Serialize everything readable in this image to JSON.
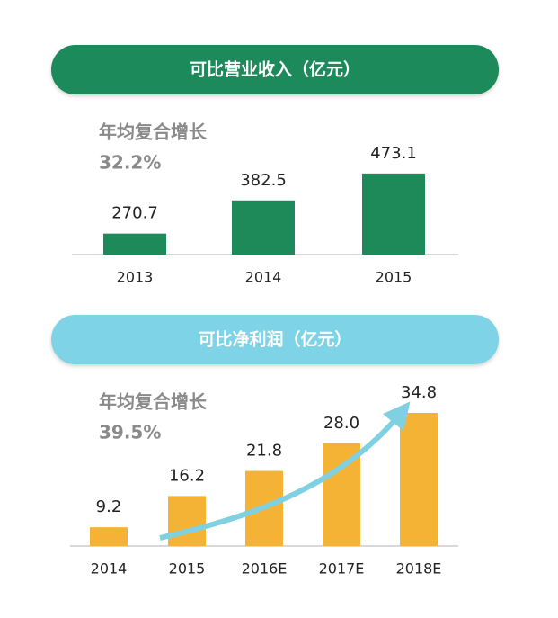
{
  "chart_data": [
    {
      "type": "bar",
      "title": "可比营业收入（亿元）",
      "annotations": [
        "年均复合增长",
        "32.2%"
      ],
      "categories": [
        "2013",
        "2014",
        "2015"
      ],
      "values": [
        270.7,
        382.5,
        473.1
      ],
      "color": "#1e8a5a",
      "ylim": [
        200,
        500
      ]
    },
    {
      "type": "bar",
      "title": "可比净利润（亿元）",
      "annotations": [
        "年均复合增长",
        "39.5%"
      ],
      "categories": [
        "2014",
        "2015",
        "2016E",
        "2017E",
        "2018E"
      ],
      "values": [
        9.2,
        16.2,
        21.8,
        28.0,
        34.8
      ],
      "value_labels": [
        "9.2",
        "16.2",
        "21.8",
        "28.0",
        "34.8"
      ],
      "color": "#f5b335",
      "ylim": [
        5,
        35
      ]
    }
  ]
}
